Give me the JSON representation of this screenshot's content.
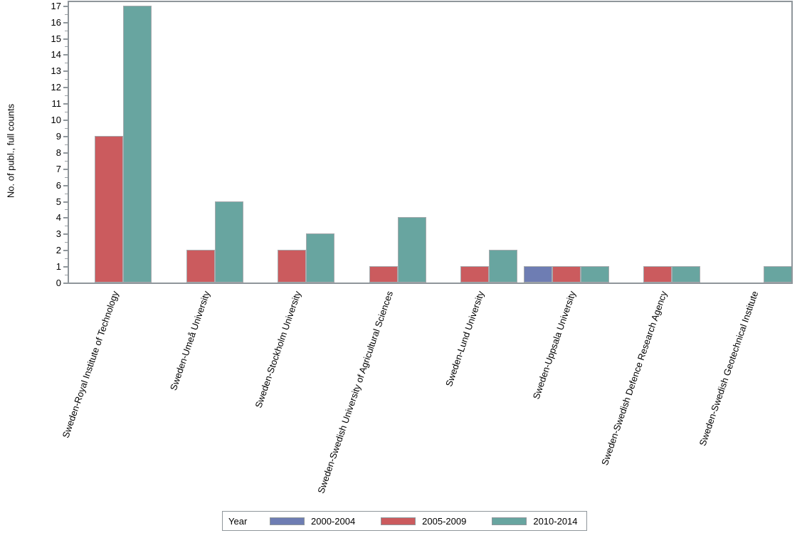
{
  "chart_data": {
    "type": "bar",
    "title": "",
    "xlabel": "",
    "ylabel": "No. of publ., full counts",
    "categories": [
      "Sweden-Royal Institute of Technology",
      "Sweden-Umeå University",
      "Sweden-Stockholm University",
      "Sweden-Swedish University of Agricultural Sciences",
      "Sweden-Lund University",
      "Sweden-Uppsala University",
      "Sweden-Swedish Defence Research Agency",
      "Sweden-Swedish Geotechnical Institute"
    ],
    "series": [
      {
        "name": "2000-2004",
        "color": "#6e7db3",
        "values": [
          0,
          0,
          0,
          0,
          0,
          1,
          0,
          0
        ]
      },
      {
        "name": "2005-2009",
        "color": "#cb5b5e",
        "values": [
          9,
          2,
          2,
          1,
          1,
          1,
          1,
          0
        ]
      },
      {
        "name": "2010-2014",
        "color": "#68a5a0",
        "values": [
          17,
          5,
          3,
          4,
          2,
          1,
          1,
          1
        ]
      }
    ],
    "ylim": [
      0,
      17.3
    ],
    "yticks_major": [
      0,
      1,
      2,
      3,
      4,
      5,
      6,
      7,
      8,
      9,
      10,
      11,
      12,
      13,
      14,
      15,
      16,
      17
    ],
    "minor_tick_step": 0.5,
    "grid": false,
    "legend": {
      "title": "Year",
      "position": "bottom"
    }
  },
  "colors": {
    "axis": "#8f969b",
    "bar_border": "#a6aaad",
    "text": "#000000",
    "background": "#ffffff"
  }
}
